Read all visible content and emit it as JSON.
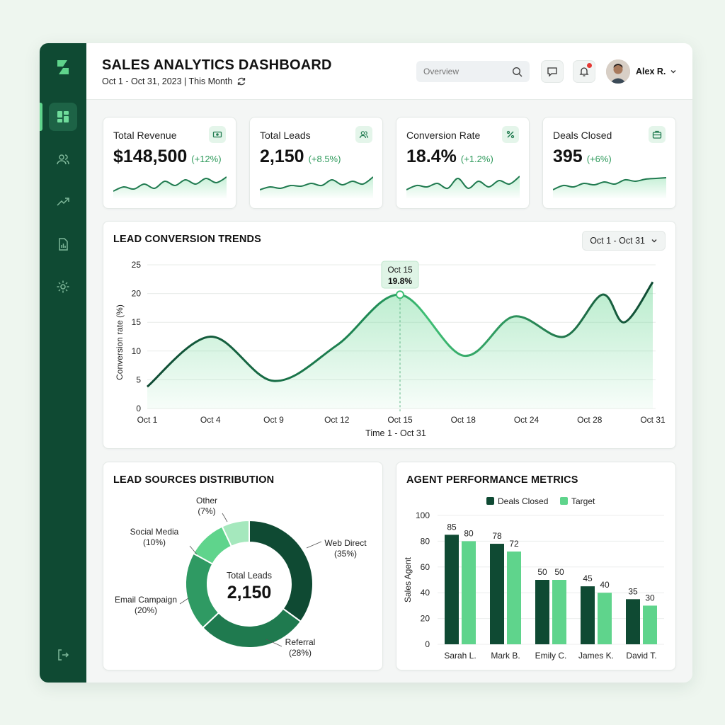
{
  "header": {
    "title": "SALES ANALYTICS DASHBOARD",
    "subtitle": "Oct 1 - Oct 31, 2023 | This Month",
    "search_placeholder": "Overview",
    "user_name": "Alex R."
  },
  "sidebar": {
    "items": [
      {
        "icon": "dashboard-icon",
        "active": true
      },
      {
        "icon": "users-icon",
        "active": false
      },
      {
        "icon": "trend-icon",
        "active": false
      },
      {
        "icon": "report-icon",
        "active": false
      },
      {
        "icon": "gear-icon",
        "active": false
      }
    ],
    "bottom_icon": "logout-icon"
  },
  "kpis": [
    {
      "label": "Total Revenue",
      "value": "$148,500",
      "change": "(+12%)",
      "icon": "money-icon"
    },
    {
      "label": "Total Leads",
      "value": "2,150",
      "change": "(+8.5%)",
      "icon": "users-icon"
    },
    {
      "label": "Conversion Rate",
      "value": "18.4%",
      "change": "(+1.2%)",
      "icon": "percent-icon"
    },
    {
      "label": "Deals Closed",
      "value": "395",
      "change": "(+6%)",
      "icon": "briefcase-icon"
    }
  ],
  "lead_trends": {
    "title": "LEAD CONVERSION TRENDS",
    "date_range": "Oct 1 - Oct 31",
    "tooltip_date": "Oct 15",
    "tooltip_value": "19.8%"
  },
  "lead_sources": {
    "title": "LEAD SOURCES DISTRIBUTION",
    "center_label": "Total Leads",
    "center_value": "2,150"
  },
  "agent_perf": {
    "title": "AGENT PERFORMANCE METRICS"
  },
  "colors": {
    "dark_green": "#0f4a33",
    "green": "#1f7a4f",
    "light_green": "#5fd48c",
    "accent": "#2e9a5b"
  },
  "chart_data": [
    {
      "type": "line",
      "title": "LEAD CONVERSION TRENDS",
      "xlabel": "Time 1 - Oct 31",
      "ylabel": "Conversion rate (%)",
      "ylim": [
        0,
        25
      ],
      "yticks": [
        0,
        5,
        10,
        15,
        20,
        25
      ],
      "xticks": [
        "Oct 1",
        "Oct 4",
        "Oct 9",
        "Oct 12",
        "Oct 15",
        "Oct 18",
        "Oct 24",
        "Oct 28",
        "Oct 31"
      ],
      "series": [
        {
          "values": [
            3.8,
            12.5,
            4.8,
            11.0,
            19.8,
            9.2,
            16.0,
            12.5,
            19.8,
            15.0,
            22.0
          ]
        }
      ],
      "x_positions": [
        0,
        1,
        2,
        3,
        4,
        5,
        5.8,
        6.6,
        7.2,
        7.55,
        8
      ],
      "grid": true
    },
    {
      "type": "pie",
      "title": "LEAD SOURCES DISTRIBUTION",
      "categories": [
        "Web Direct",
        "Referral",
        "Email Campaign",
        "Social Media",
        "Other"
      ],
      "values": [
        35,
        28,
        20,
        10,
        7
      ],
      "labels": [
        "Web Direct (35%)",
        "Referral (28%)",
        "Email Campaign (20%)",
        "Social Media (10%)",
        "Other (7%)"
      ]
    },
    {
      "type": "bar",
      "title": "AGENT PERFORMANCE METRICS",
      "categories": [
        "Sarah L.",
        "Mark B.",
        "Emily C.",
        "James K.",
        "David T."
      ],
      "series": [
        {
          "name": "Deals Closed",
          "values": [
            85,
            78,
            50,
            45,
            35
          ]
        },
        {
          "name": "Target",
          "values": [
            80,
            72,
            50,
            40,
            30
          ]
        }
      ],
      "ylabel": "Sales Agent",
      "ylim": [
        0,
        100
      ],
      "yticks": [
        0,
        20,
        40,
        60,
        80,
        100
      ],
      "legend": "top-center"
    }
  ]
}
